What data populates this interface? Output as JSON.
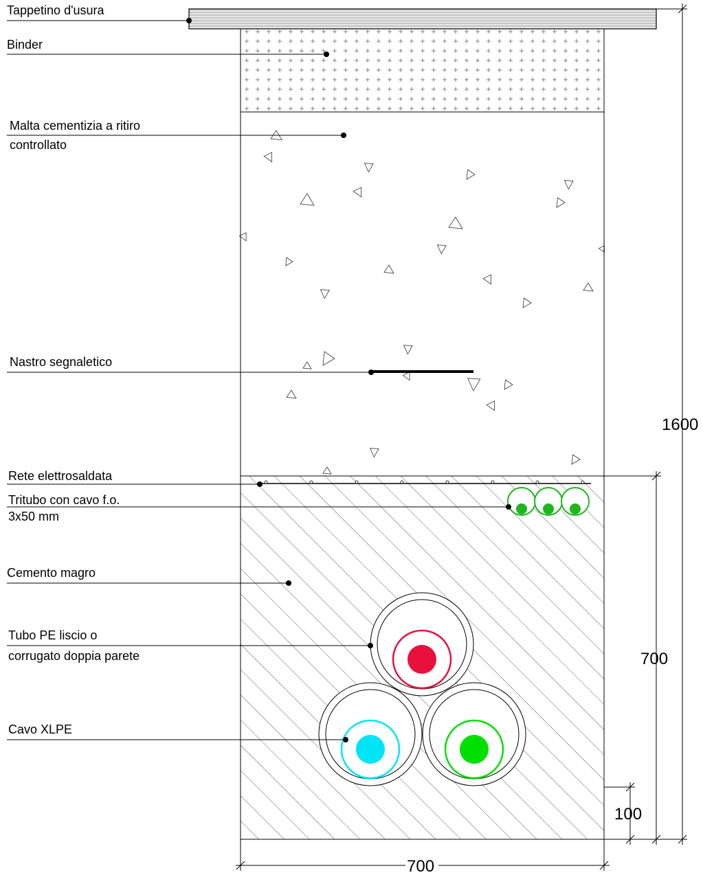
{
  "labels": {
    "tappetino": "Tappetino d'usura",
    "binder": "Binder",
    "malta_1": "Malta cementizia a ritiro",
    "malta_2": "controllato",
    "nastro": "Nastro segnaletico",
    "rete": "Rete elettrosaldata",
    "tritubo_1": "Tritubo con cavo f.o.",
    "tritubo_2": "3x50 mm",
    "cemento": "Cemento magro",
    "tubo_1": "Tubo PE liscio o",
    "tubo_2": "corrugato doppia parete",
    "cavo": "Cavo XLPE"
  },
  "dimensions": {
    "total_height": "1600",
    "lower_height": "700",
    "bottom_offset": "100",
    "width": "700"
  },
  "colors": {
    "cable_red": "#e8103c",
    "cable_cyan": "#00e5f5",
    "cable_green": "#00e000",
    "tritubo_green": "#1fb61f",
    "asphalt_fill": "#d9d9d9"
  }
}
